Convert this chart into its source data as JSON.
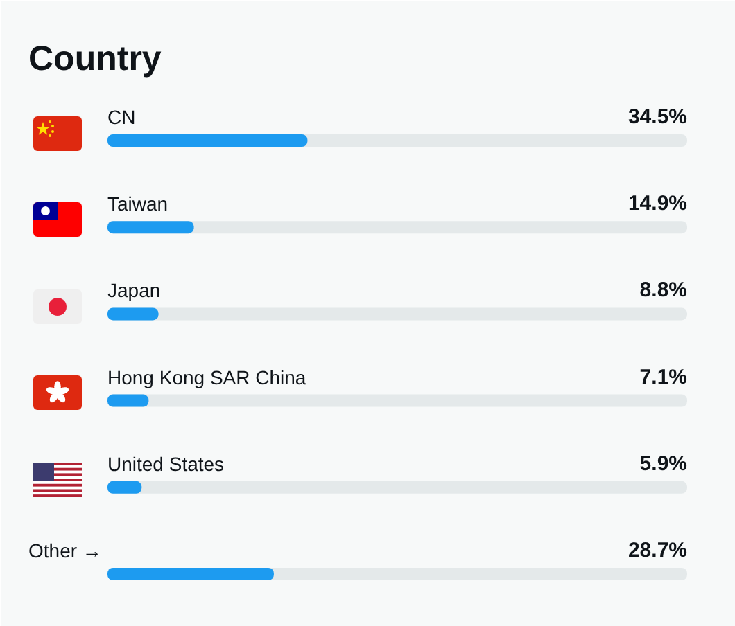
{
  "chart_data": {
    "type": "bar",
    "orientation": "horizontal",
    "title": "Country",
    "categories": [
      "CN",
      "Taiwan",
      "Japan",
      "Hong Kong SAR China",
      "United States",
      "Other →"
    ],
    "values": [
      34.5,
      14.9,
      8.8,
      7.1,
      5.9,
      28.7
    ],
    "value_labels": [
      "34.5%",
      "14.9%",
      "8.8%",
      "7.1%",
      "5.9%",
      "28.7%"
    ],
    "color": "#1d9bf0",
    "xlim": [
      0,
      100
    ],
    "tick_labels": false
  }
}
